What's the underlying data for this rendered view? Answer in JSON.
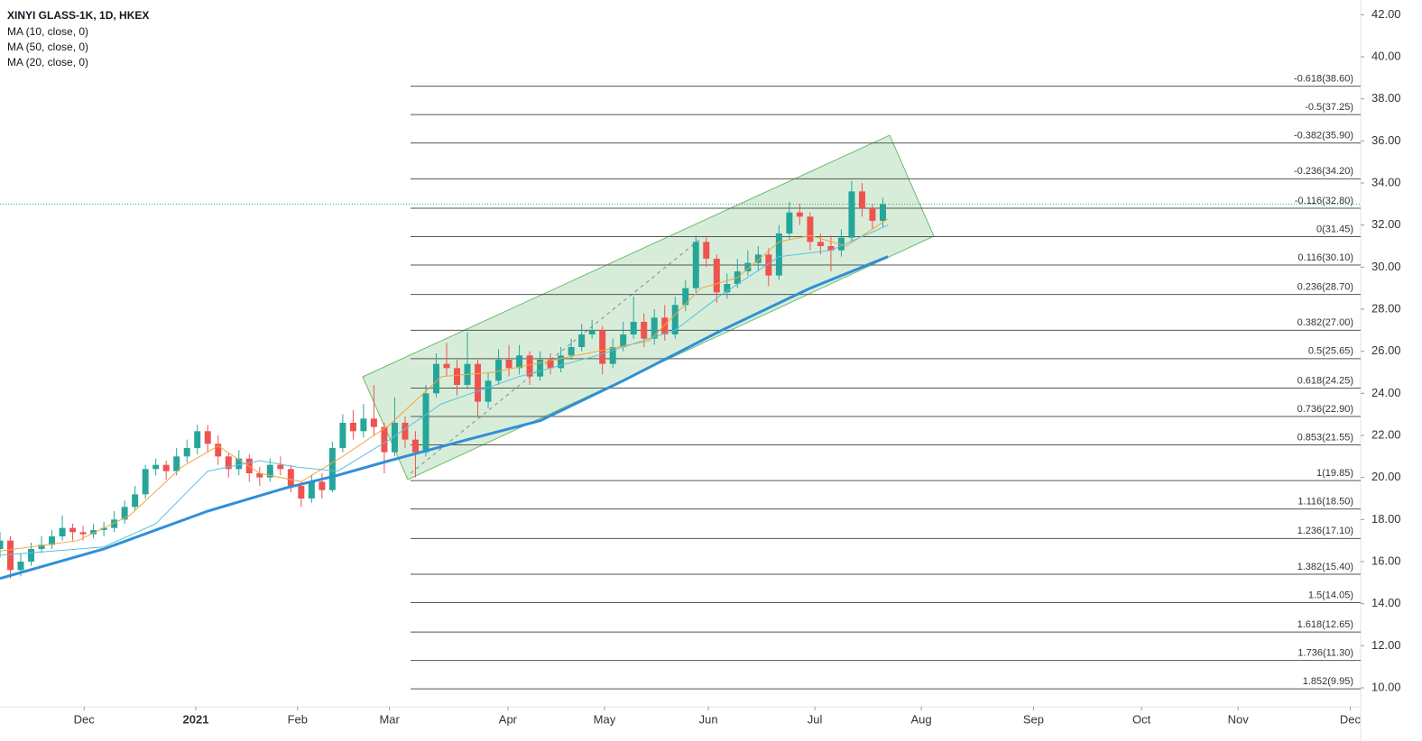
{
  "chart_data": {
    "type": "candlestick",
    "title": "XINYI GLASS-1K, 1D, HKEX",
    "xlim": [
      0,
      262
    ],
    "xticks": [
      {
        "value": 16.2,
        "label": "Dec"
      },
      {
        "value": 37.7,
        "label": "2021"
      },
      {
        "value": 57.3,
        "label": "Feb"
      },
      {
        "value": 75,
        "label": "Mar"
      },
      {
        "value": 97.8,
        "label": "Apr"
      },
      {
        "value": 116.4,
        "label": "May"
      },
      {
        "value": 136.4,
        "label": "Jun"
      },
      {
        "value": 156.9,
        "label": "Jul"
      },
      {
        "value": 177.4,
        "label": "Aug"
      },
      {
        "value": 199,
        "label": "Sep"
      },
      {
        "value": 219.8,
        "label": "Oct"
      },
      {
        "value": 238.4,
        "label": "Nov"
      },
      {
        "value": 260,
        "label": "Dec"
      }
    ],
    "ylim": [
      9.1,
      42.7
    ],
    "yticks": [
      {
        "value": 42,
        "label": "42.00"
      },
      {
        "value": 40,
        "label": "40.00"
      },
      {
        "value": 38,
        "label": "38.00"
      },
      {
        "value": 36,
        "label": "36.00"
      },
      {
        "value": 34,
        "label": "34.00"
      },
      {
        "value": 32,
        "label": "32.00"
      },
      {
        "value": 30,
        "label": "30.00"
      },
      {
        "value": 28,
        "label": "28.00"
      },
      {
        "value": 26,
        "label": "26.00"
      },
      {
        "value": 24,
        "label": "24.00"
      },
      {
        "value": 22,
        "label": "22.00"
      },
      {
        "value": 20,
        "label": "20.00"
      },
      {
        "value": 18,
        "label": "18.00"
      },
      {
        "value": 16,
        "label": "16.00"
      },
      {
        "value": 14,
        "label": "14.00"
      },
      {
        "value": 12,
        "label": "12.00"
      },
      {
        "value": 10,
        "label": "10.00"
      }
    ],
    "up_color": "#26a69a",
    "down_color": "#ef5350",
    "candles": {
      "x": [
        0,
        2,
        4,
        6,
        8,
        10,
        12,
        14,
        16,
        18,
        20,
        22,
        24,
        26,
        28,
        30,
        32,
        34,
        36,
        38,
        40,
        42,
        44,
        46,
        48,
        50,
        52,
        54,
        56,
        58,
        60,
        62,
        64,
        66,
        68,
        70,
        72,
        74,
        76,
        78,
        80,
        82,
        84,
        86,
        88,
        90,
        92,
        94,
        96,
        98,
        100,
        102,
        104,
        106,
        108,
        110,
        112,
        114,
        116,
        118,
        120,
        122,
        124,
        126,
        128,
        130,
        132,
        134,
        136,
        138,
        140,
        142,
        144,
        146,
        148,
        150,
        152,
        154,
        156,
        158,
        160,
        162,
        164,
        166,
        168,
        170
      ],
      "open": [
        16.6,
        17.0,
        15.6,
        16.0,
        16.6,
        16.8,
        17.2,
        17.6,
        17.4,
        17.3,
        17.5,
        17.6,
        18.0,
        18.6,
        19.2,
        20.4,
        20.6,
        20.3,
        21.0,
        21.4,
        22.2,
        21.6,
        21.0,
        20.4,
        20.9,
        20.2,
        20.0,
        20.6,
        20.4,
        19.6,
        19.0,
        19.8,
        19.4,
        21.4,
        22.6,
        22.2,
        22.8,
        22.4,
        21.2,
        22.6,
        21.8,
        21.2,
        24.0,
        25.4,
        25.2,
        24.4,
        25.4,
        23.6,
        24.6,
        25.6,
        25.2,
        25.8,
        24.8,
        25.6,
        25.2,
        25.8,
        26.2,
        26.8,
        27.0,
        25.4,
        26.2,
        26.8,
        27.4,
        26.6,
        27.6,
        26.8,
        28.2,
        29.0,
        31.2,
        30.4,
        28.8,
        29.2,
        29.8,
        30.2,
        30.6,
        29.6,
        31.6,
        32.6,
        32.4,
        31.2,
        31.0,
        30.8,
        31.4,
        33.6,
        32.8,
        32.2
      ],
      "high": [
        17.4,
        17.2,
        16.4,
        16.9,
        17.2,
        17.5,
        18.2,
        17.8,
        17.7,
        17.8,
        17.9,
        18.4,
        18.9,
        19.6,
        20.6,
        20.9,
        20.8,
        21.4,
        21.8,
        22.5,
        22.5,
        22.0,
        21.2,
        21.3,
        21.1,
        20.5,
        20.9,
        21.0,
        20.6,
        19.8,
        20.1,
        20.2,
        21.7,
        23.0,
        23.2,
        23.5,
        24.4,
        22.6,
        23.8,
        22.9,
        22.2,
        24.4,
        25.9,
        26.4,
        25.6,
        26.9,
        25.6,
        25.0,
        26.1,
        26.3,
        26.3,
        26.0,
        26.0,
        25.9,
        26.2,
        26.6,
        27.3,
        27.5,
        27.2,
        26.6,
        27.4,
        28.6,
        27.8,
        28.0,
        28.2,
        28.6,
        29.4,
        31.5,
        31.5,
        30.6,
        29.7,
        30.4,
        30.8,
        31.0,
        30.9,
        32.0,
        33.1,
        33.0,
        32.6,
        31.6,
        31.5,
        31.8,
        34.1,
        34.0,
        33.0,
        33.3
      ],
      "low": [
        16.2,
        15.2,
        15.3,
        15.8,
        16.4,
        16.6,
        17.0,
        17.0,
        17.0,
        17.1,
        17.2,
        17.4,
        17.8,
        18.4,
        19.0,
        20.1,
        19.9,
        20.1,
        20.7,
        21.1,
        21.2,
        20.6,
        20.0,
        20.1,
        19.8,
        19.6,
        19.8,
        20.1,
        19.3,
        18.6,
        18.8,
        19.0,
        19.3,
        21.2,
        21.8,
        21.9,
        22.0,
        20.2,
        21.0,
        21.4,
        20.0,
        21.0,
        23.8,
        24.8,
        23.9,
        24.2,
        22.9,
        23.3,
        24.4,
        24.8,
        24.9,
        24.4,
        24.6,
        24.9,
        25.0,
        25.6,
        26.0,
        26.6,
        24.9,
        25.2,
        26.0,
        26.6,
        26.2,
        26.3,
        26.5,
        26.6,
        27.9,
        28.8,
        30.0,
        28.3,
        28.5,
        29.0,
        29.6,
        29.8,
        29.1,
        29.4,
        31.3,
        32.0,
        30.8,
        30.6,
        29.8,
        30.5,
        31.2,
        32.4,
        31.8,
        31.9
      ],
      "close": [
        17.0,
        15.6,
        16.0,
        16.6,
        16.8,
        17.2,
        17.6,
        17.4,
        17.3,
        17.5,
        17.6,
        18.0,
        18.6,
        19.2,
        20.4,
        20.6,
        20.3,
        21.0,
        21.4,
        22.2,
        21.6,
        21.0,
        20.4,
        20.9,
        20.2,
        20.0,
        20.6,
        20.4,
        19.6,
        19.0,
        19.8,
        19.4,
        21.4,
        22.6,
        22.2,
        22.8,
        22.4,
        21.2,
        22.6,
        21.8,
        21.2,
        24.0,
        25.4,
        25.2,
        24.4,
        25.4,
        23.6,
        24.6,
        25.6,
        25.2,
        25.8,
        24.8,
        25.6,
        25.2,
        25.8,
        26.2,
        26.8,
        27.0,
        25.4,
        26.2,
        26.8,
        27.4,
        26.6,
        27.6,
        26.8,
        28.2,
        29.0,
        31.2,
        30.4,
        28.8,
        29.2,
        29.8,
        30.2,
        30.6,
        29.6,
        31.6,
        32.6,
        32.4,
        31.2,
        31.0,
        30.8,
        31.4,
        33.6,
        32.8,
        32.2,
        33.0
      ]
    },
    "series": [
      {
        "name": "MA (10, close, 0)",
        "color": "#f7a43a",
        "width": 1,
        "x": [
          0,
          15,
          25,
          35,
          42,
          50,
          58,
          66,
          75,
          85,
          95,
          105,
          115,
          125,
          135,
          142,
          150,
          156,
          163,
          171
        ],
        "values": [
          16.5,
          17.0,
          18.2,
          20.5,
          21.5,
          20.2,
          19.8,
          21.0,
          22.5,
          24.8,
          25.0,
          25.5,
          26.0,
          26.5,
          29.0,
          29.5,
          31.2,
          31.5,
          31.0,
          32.3
        ]
      },
      {
        "name": "MA (50, close, 0)",
        "color": "#2f8fd8",
        "width": 3,
        "x": [
          0,
          20,
          40,
          55,
          65,
          75,
          90,
          104,
          120,
          139,
          156,
          171
        ],
        "values": [
          15.2,
          16.6,
          18.4,
          19.5,
          20.1,
          20.8,
          21.8,
          22.7,
          24.6,
          27.0,
          29.0,
          30.5
        ]
      },
      {
        "name": "MA (20, close, 0)",
        "color": "#5bc0de",
        "width": 1,
        "x": [
          0,
          20,
          30,
          40,
          50,
          57,
          65,
          75,
          85,
          100,
          115,
          130,
          139,
          150,
          160,
          171
        ],
        "values": [
          16.3,
          16.7,
          17.8,
          20.3,
          20.8,
          20.5,
          20.3,
          21.8,
          23.5,
          24.8,
          25.8,
          27.0,
          28.7,
          30.5,
          30.8,
          32.0
        ]
      }
    ],
    "fib_levels": {
      "color": "#555555",
      "values": [
        38.6,
        37.25,
        35.9,
        34.2,
        32.8,
        31.45,
        30.1,
        28.7,
        27.0,
        25.65,
        24.25,
        22.9,
        21.55,
        19.85,
        18.5,
        17.1,
        15.4,
        14.05,
        12.65,
        11.3,
        9.95
      ],
      "value_labels": [
        "-0.618(38.60)",
        "-0.5(37.25)",
        "-0.382(35.90)",
        "-0.236(34.20)",
        "-0.116(32.80)",
        "0(31.45)",
        "0.116(30.10)",
        "0.236(28.70)",
        "0.382(27.00)",
        "0.5(25.65)",
        "0.618(24.25)",
        "0.736(22.90)",
        "0.853(21.55)",
        "1(19.85)",
        "1.116(18.50)",
        "1.236(17.10)",
        "1.382(15.40)",
        "1.5(14.05)",
        "1.618(12.65)",
        "1.736(11.30)",
        "1.852(9.95)"
      ]
    }
  }
}
